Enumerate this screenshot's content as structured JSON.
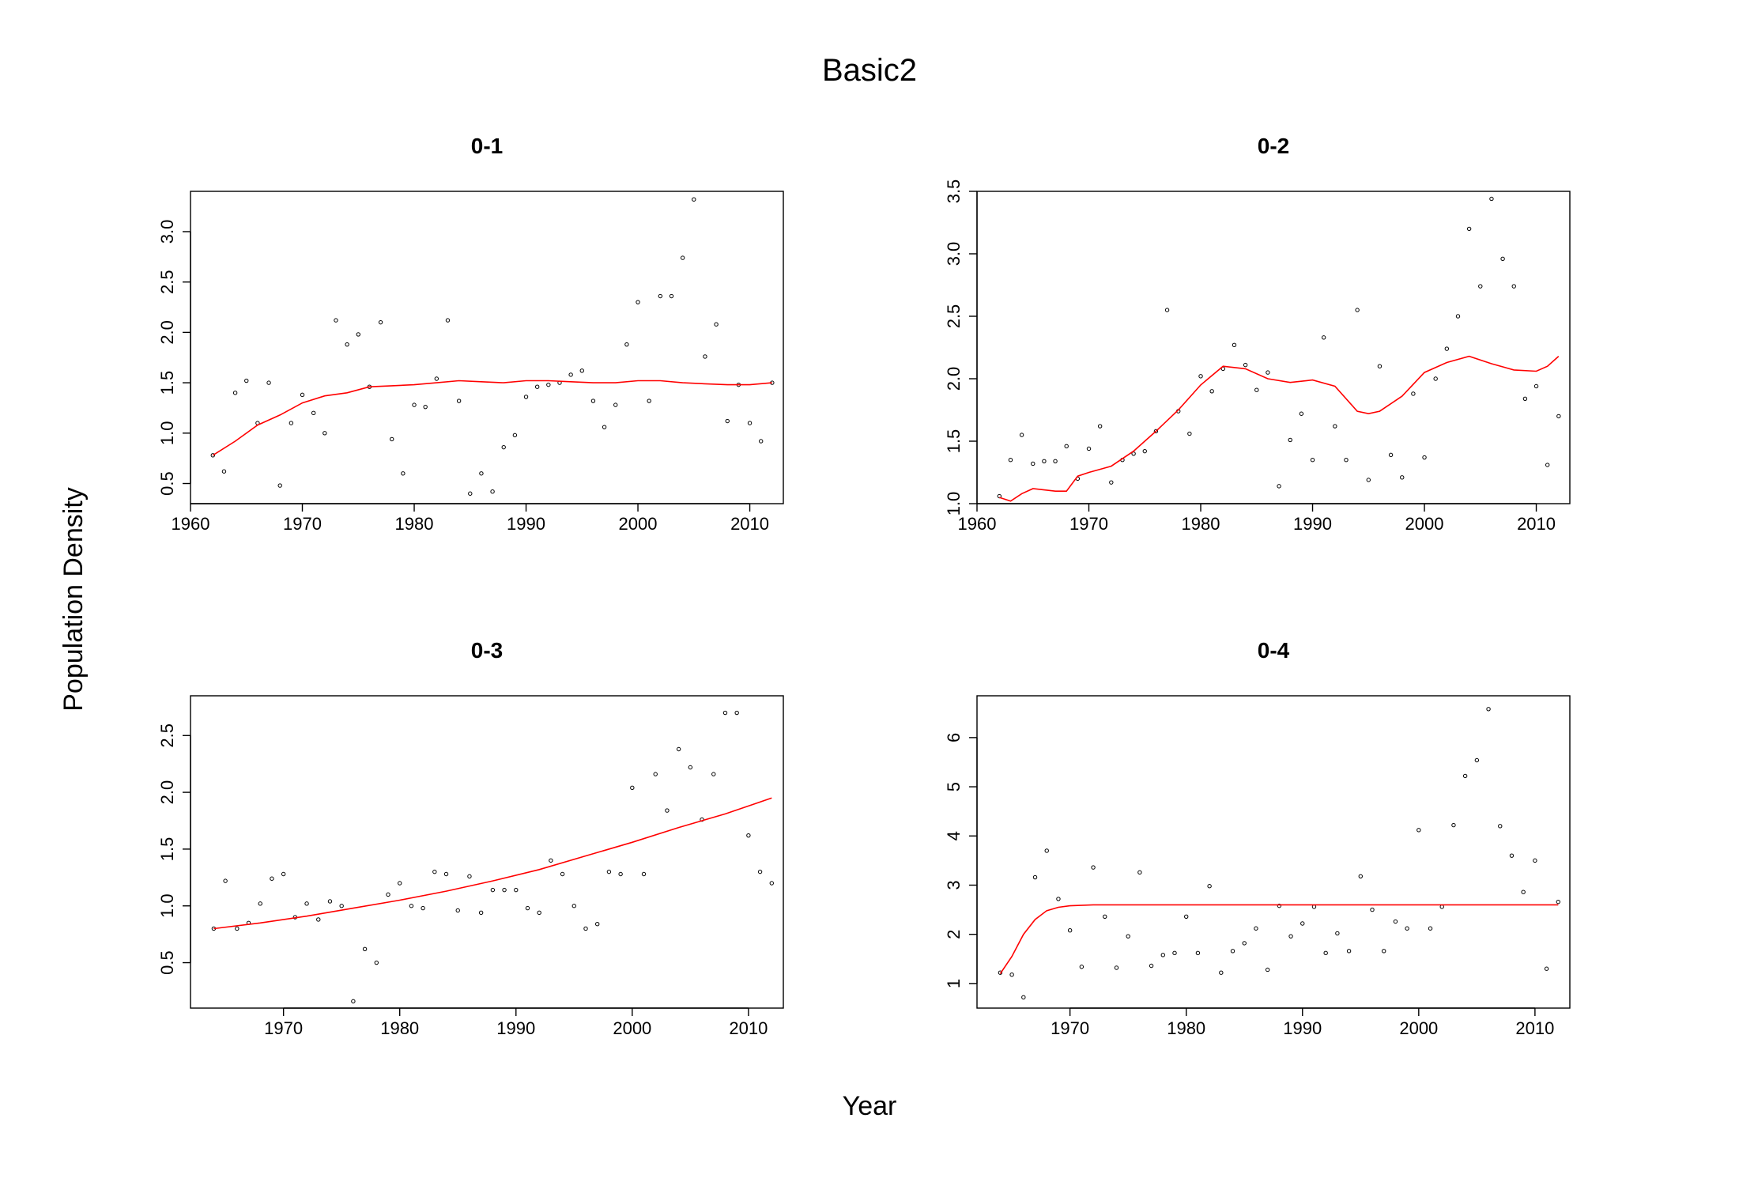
{
  "figure": {
    "title": "Basic2",
    "xlabel": "Year",
    "ylabel": "Population Density",
    "fit_color": "#ff0000",
    "point_color": "#000000"
  },
  "chart_data": [
    {
      "type": "scatter",
      "title": "0-1",
      "xlim": [
        1960,
        2013
      ],
      "ylim": [
        0.3,
        3.4
      ],
      "xticks": [
        1960,
        1970,
        1980,
        1990,
        2000,
        2010
      ],
      "yticks": [
        0.5,
        1.0,
        1.5,
        2.0,
        2.5,
        3.0
      ],
      "points": {
        "x": [
          1962,
          1963,
          1964,
          1965,
          1966,
          1967,
          1968,
          1969,
          1970,
          1971,
          1972,
          1973,
          1974,
          1975,
          1976,
          1977,
          1978,
          1979,
          1980,
          1981,
          1982,
          1983,
          1984,
          1985,
          1986,
          1987,
          1988,
          1989,
          1990,
          1991,
          1992,
          1993,
          1994,
          1995,
          1996,
          1997,
          1998,
          1999,
          2000,
          2001,
          2002,
          2003,
          2004,
          2005,
          2006,
          2007,
          2008,
          2009,
          2010,
          2011,
          2012
        ],
        "y": [
          0.78,
          0.62,
          1.4,
          1.52,
          1.1,
          1.5,
          0.48,
          1.1,
          1.38,
          1.2,
          1.0,
          2.12,
          1.88,
          1.98,
          1.46,
          2.1,
          0.94,
          0.6,
          1.28,
          1.26,
          1.54,
          2.12,
          1.32,
          0.4,
          0.6,
          0.42,
          0.86,
          0.98,
          1.36,
          1.46,
          1.48,
          1.5,
          1.58,
          1.62,
          1.32,
          1.06,
          1.28,
          1.88,
          2.3,
          1.32,
          2.36,
          2.36,
          2.74,
          3.32,
          1.76,
          2.08,
          1.12,
          1.48,
          1.1,
          0.92,
          1.5
        ]
      },
      "fit": {
        "x": [
          1962,
          1964,
          1966,
          1968,
          1970,
          1972,
          1974,
          1976,
          1978,
          1980,
          1982,
          1984,
          1986,
          1988,
          1990,
          1992,
          1994,
          1996,
          1998,
          2000,
          2002,
          2004,
          2006,
          2008,
          2010,
          2012
        ],
        "y": [
          0.78,
          0.92,
          1.08,
          1.18,
          1.3,
          1.37,
          1.4,
          1.46,
          1.47,
          1.48,
          1.5,
          1.52,
          1.51,
          1.5,
          1.52,
          1.52,
          1.51,
          1.5,
          1.5,
          1.52,
          1.52,
          1.5,
          1.49,
          1.48,
          1.48,
          1.5
        ]
      }
    },
    {
      "type": "scatter",
      "title": "0-2",
      "xlim": [
        1960,
        2013
      ],
      "ylim": [
        1.0,
        3.5
      ],
      "xticks": [
        1960,
        1970,
        1980,
        1990,
        2000,
        2010
      ],
      "yticks": [
        1.0,
        1.5,
        2.0,
        2.5,
        3.0,
        3.5
      ],
      "ytick_labels": [
        "1.0",
        "1.5",
        "2.0",
        "2.5",
        "3.0",
        "3.5"
      ],
      "points": {
        "x": [
          1962,
          1963,
          1964,
          1965,
          1966,
          1967,
          1968,
          1969,
          1970,
          1971,
          1972,
          1973,
          1974,
          1975,
          1976,
          1977,
          1978,
          1979,
          1980,
          1981,
          1982,
          1983,
          1984,
          1985,
          1986,
          1987,
          1988,
          1989,
          1990,
          1991,
          1992,
          1993,
          1994,
          1995,
          1996,
          1997,
          1998,
          1999,
          2000,
          2001,
          2002,
          2003,
          2004,
          2005,
          2006,
          2007,
          2008,
          2009,
          2010,
          2011,
          2012
        ],
        "y": [
          1.06,
          1.35,
          1.55,
          1.32,
          1.34,
          1.34,
          1.46,
          1.2,
          1.44,
          1.62,
          1.17,
          1.35,
          1.4,
          1.42,
          1.58,
          2.55,
          1.74,
          1.56,
          2.02,
          1.9,
          2.08,
          2.27,
          2.11,
          1.91,
          2.05,
          1.14,
          1.51,
          1.72,
          1.35,
          2.33,
          1.62,
          1.35,
          2.55,
          1.19,
          2.1,
          1.39,
          1.21,
          1.88,
          1.37,
          2.0,
          2.24,
          2.5,
          3.2,
          2.74,
          3.44,
          2.96,
          2.74,
          1.84,
          1.94,
          1.31,
          1.7
        ]
      },
      "fit": {
        "x": [
          1962,
          1963,
          1964,
          1965,
          1966,
          1967,
          1968,
          1969,
          1970,
          1972,
          1974,
          1976,
          1978,
          1980,
          1982,
          1984,
          1986,
          1988,
          1990,
          1992,
          1994,
          1995,
          1996,
          1998,
          2000,
          2002,
          2004,
          2006,
          2008,
          2010,
          2011,
          2012
        ],
        "y": [
          1.05,
          1.02,
          1.08,
          1.12,
          1.11,
          1.1,
          1.1,
          1.22,
          1.25,
          1.3,
          1.42,
          1.58,
          1.75,
          1.95,
          2.1,
          2.08,
          2.0,
          1.97,
          1.99,
          1.94,
          1.74,
          1.72,
          1.74,
          1.86,
          2.05,
          2.13,
          2.18,
          2.12,
          2.07,
          2.06,
          2.1,
          2.18
        ]
      }
    },
    {
      "type": "scatter",
      "title": "0-3",
      "xlim": [
        1962,
        2013
      ],
      "ylim": [
        0.1,
        2.85
      ],
      "xticks": [
        1970,
        1980,
        1990,
        2000,
        2010
      ],
      "yticks": [
        0.5,
        1.0,
        1.5,
        2.0,
        2.5
      ],
      "points": {
        "x": [
          1964,
          1965,
          1966,
          1967,
          1968,
          1969,
          1970,
          1971,
          1972,
          1973,
          1974,
          1975,
          1976,
          1977,
          1978,
          1979,
          1980,
          1981,
          1982,
          1983,
          1984,
          1985,
          1986,
          1987,
          1988,
          1989,
          1990,
          1991,
          1992,
          1993,
          1994,
          1995,
          1996,
          1997,
          1998,
          1999,
          2000,
          2001,
          2002,
          2003,
          2004,
          2005,
          2006,
          2007,
          2008,
          2009,
          2010,
          2011,
          2012
        ],
        "y": [
          0.8,
          1.22,
          0.8,
          0.85,
          1.02,
          1.24,
          1.28,
          0.9,
          1.02,
          0.88,
          1.04,
          1.0,
          0.16,
          0.62,
          0.5,
          1.1,
          1.2,
          1.0,
          0.98,
          1.3,
          1.28,
          0.96,
          1.26,
          0.94,
          1.14,
          1.14,
          1.14,
          0.98,
          0.94,
          1.4,
          1.28,
          1.0,
          0.8,
          0.84,
          1.3,
          1.28,
          2.04,
          1.28,
          2.16,
          1.84,
          2.38,
          2.22,
          1.76,
          2.16,
          2.7,
          2.7,
          1.62,
          1.3,
          1.2
        ]
      },
      "fit": {
        "x": [
          1964,
          1968,
          1972,
          1976,
          1980,
          1984,
          1988,
          1992,
          1996,
          2000,
          2004,
          2008,
          2012
        ],
        "y": [
          0.8,
          0.85,
          0.91,
          0.98,
          1.05,
          1.13,
          1.22,
          1.32,
          1.44,
          1.56,
          1.69,
          1.81,
          1.95
        ]
      }
    },
    {
      "type": "scatter",
      "title": "0-4",
      "xlim": [
        1962,
        2013
      ],
      "ylim": [
        0.5,
        6.85
      ],
      "xticks": [
        1970,
        1980,
        1990,
        2000,
        2010
      ],
      "yticks": [
        1,
        2,
        3,
        4,
        5,
        6
      ],
      "points": {
        "x": [
          1964,
          1965,
          1966,
          1967,
          1968,
          1969,
          1970,
          1971,
          1972,
          1973,
          1974,
          1975,
          1976,
          1977,
          1978,
          1979,
          1980,
          1981,
          1982,
          1983,
          1984,
          1985,
          1986,
          1987,
          1988,
          1989,
          1990,
          1991,
          1992,
          1993,
          1994,
          1995,
          1996,
          1997,
          1998,
          1999,
          2000,
          2001,
          2002,
          2003,
          2004,
          2005,
          2006,
          2007,
          2008,
          2009,
          2010,
          2011,
          2012
        ],
        "y": [
          1.22,
          1.18,
          0.72,
          3.16,
          3.7,
          2.72,
          2.08,
          1.34,
          3.36,
          2.36,
          1.32,
          1.96,
          3.26,
          1.36,
          1.58,
          1.62,
          2.36,
          1.62,
          2.98,
          1.22,
          1.66,
          1.82,
          2.12,
          1.28,
          2.58,
          1.96,
          2.22,
          2.56,
          1.62,
          2.02,
          1.66,
          3.18,
          2.5,
          1.66,
          2.26,
          2.12,
          4.12,
          2.12,
          2.56,
          4.22,
          5.22,
          5.54,
          6.58,
          4.2,
          3.6,
          2.86,
          3.5,
          1.3,
          2.66
        ]
      },
      "fit": {
        "x": [
          1964,
          1965,
          1966,
          1967,
          1968,
          1969,
          1970,
          1972,
          1976,
          1980,
          1984,
          1988,
          1992,
          1996,
          2000,
          2004,
          2008,
          2012
        ],
        "y": [
          1.2,
          1.55,
          2.0,
          2.3,
          2.48,
          2.55,
          2.58,
          2.6,
          2.6,
          2.6,
          2.6,
          2.6,
          2.6,
          2.6,
          2.6,
          2.6,
          2.6,
          2.6
        ]
      }
    }
  ]
}
